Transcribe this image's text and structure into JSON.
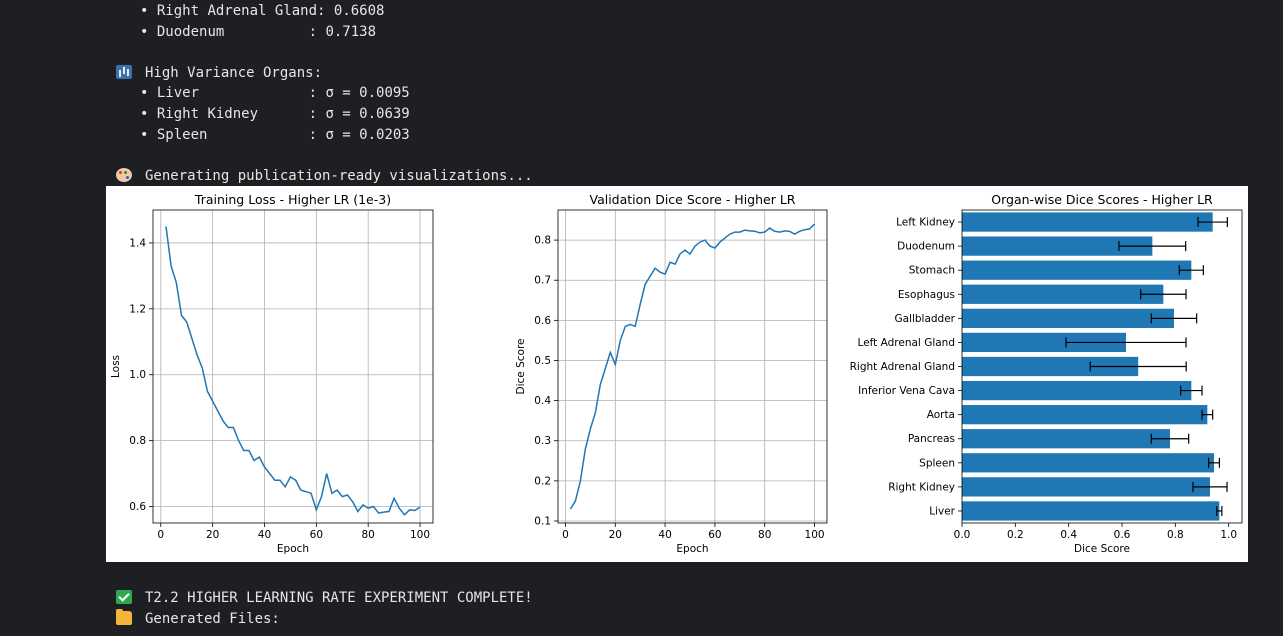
{
  "console": {
    "top_lines": [
      {
        "label": "Right Adrenal Gland",
        "value": ": 0.6608"
      },
      {
        "label": "Duodenum          ",
        "value": ": 0.7138"
      }
    ],
    "variance_header": "High Variance Organs:",
    "variance_icon": "bar-chart-icon",
    "variance_items": [
      {
        "label": "Liver             ",
        "value": ": σ = 0.0095"
      },
      {
        "label": "Right Kidney      ",
        "value": ": σ = 0.0639"
      },
      {
        "label": "Spleen            ",
        "value": ": σ = 0.0203"
      }
    ],
    "generating_text": "Generating publication-ready visualizations...",
    "generating_icon": "palette-icon",
    "complete_text": "T2.2 HIGHER LEARNING RATE EXPERIMENT COMPLETE!",
    "complete_icon": "check-mark-icon",
    "files_text": "Generated Files:",
    "files_icon": "folder-icon",
    "bullet_char": "•"
  },
  "chart_data": [
    {
      "type": "line",
      "title": "Training Loss - Higher LR (1e-3)",
      "xlabel": "Epoch",
      "ylabel": "Loss",
      "xlim": [
        -3,
        105
      ],
      "ylim": [
        0.55,
        1.5
      ],
      "xticks": [
        0,
        20,
        40,
        60,
        80,
        100
      ],
      "yticks": [
        0.6,
        0.8,
        1.0,
        1.2,
        1.4
      ],
      "grid": true,
      "color": "#1f77b4",
      "x": [
        2,
        4,
        6,
        8,
        10,
        12,
        14,
        16,
        18,
        20,
        22,
        24,
        26,
        28,
        30,
        32,
        34,
        36,
        38,
        40,
        42,
        44,
        46,
        48,
        50,
        52,
        54,
        56,
        58,
        60,
        62,
        64,
        66,
        68,
        70,
        72,
        74,
        76,
        78,
        80,
        82,
        84,
        86,
        88,
        90,
        92,
        94,
        96,
        98,
        100
      ],
      "values": [
        1.45,
        1.33,
        1.28,
        1.18,
        1.16,
        1.11,
        1.06,
        1.02,
        0.95,
        0.92,
        0.89,
        0.86,
        0.84,
        0.84,
        0.8,
        0.77,
        0.77,
        0.74,
        0.75,
        0.72,
        0.7,
        0.68,
        0.68,
        0.66,
        0.69,
        0.68,
        0.65,
        0.645,
        0.64,
        0.59,
        0.63,
        0.7,
        0.64,
        0.65,
        0.63,
        0.635,
        0.615,
        0.585,
        0.605,
        0.595,
        0.6,
        0.58,
        0.583,
        0.585,
        0.625,
        0.595,
        0.575,
        0.59,
        0.588,
        0.598
      ]
    },
    {
      "type": "line",
      "title": "Validation Dice Score - Higher LR",
      "xlabel": "Epoch",
      "ylabel": "Dice Score",
      "xlim": [
        -3,
        105
      ],
      "ylim": [
        0.095,
        0.875
      ],
      "xticks": [
        0,
        20,
        40,
        60,
        80,
        100
      ],
      "yticks": [
        0.1,
        0.2,
        0.3,
        0.4,
        0.5,
        0.6,
        0.7,
        0.8
      ],
      "grid": true,
      "color": "#1f77b4",
      "x": [
        2,
        4,
        6,
        8,
        10,
        12,
        14,
        16,
        18,
        20,
        22,
        24,
        26,
        28,
        30,
        32,
        34,
        36,
        38,
        40,
        42,
        44,
        46,
        48,
        50,
        52,
        54,
        56,
        58,
        60,
        62,
        64,
        66,
        68,
        70,
        72,
        74,
        76,
        78,
        80,
        82,
        84,
        86,
        88,
        90,
        92,
        94,
        96,
        98,
        100
      ],
      "values": [
        0.13,
        0.15,
        0.2,
        0.28,
        0.33,
        0.37,
        0.44,
        0.48,
        0.52,
        0.49,
        0.55,
        0.585,
        0.59,
        0.585,
        0.64,
        0.69,
        0.71,
        0.73,
        0.72,
        0.715,
        0.745,
        0.74,
        0.765,
        0.775,
        0.765,
        0.785,
        0.795,
        0.8,
        0.785,
        0.78,
        0.795,
        0.805,
        0.815,
        0.82,
        0.82,
        0.825,
        0.823,
        0.822,
        0.818,
        0.82,
        0.83,
        0.822,
        0.82,
        0.823,
        0.822,
        0.815,
        0.822,
        0.826,
        0.828,
        0.84
      ]
    },
    {
      "type": "bar",
      "orientation": "horizontal",
      "title": "Organ-wise Dice Scores - Higher LR",
      "xlabel": "Dice Score",
      "ylabel": "",
      "xlim": [
        0,
        1.05
      ],
      "xticks": [
        0.0,
        0.2,
        0.4,
        0.6,
        0.8,
        1.0
      ],
      "grid": false,
      "color": "#1f77b4",
      "error_color": "#000000",
      "categories": [
        "Left Kidney",
        "Duodenum",
        "Stomach",
        "Esophagus",
        "Gallbladder",
        "Left Adrenal Gland",
        "Right Adrenal Gland",
        "Inferior Vena Cava",
        "Aorta",
        "Pancreas",
        "Spleen",
        "Right Kidney",
        "Liver"
      ],
      "values": [
        0.94,
        0.7138,
        0.86,
        0.755,
        0.795,
        0.615,
        0.6608,
        0.86,
        0.92,
        0.78,
        0.945,
        0.93,
        0.965
      ],
      "errors": [
        0.055,
        0.125,
        0.045,
        0.085,
        0.085,
        0.225,
        0.18,
        0.04,
        0.02,
        0.07,
        0.0203,
        0.0639,
        0.0095
      ]
    }
  ]
}
